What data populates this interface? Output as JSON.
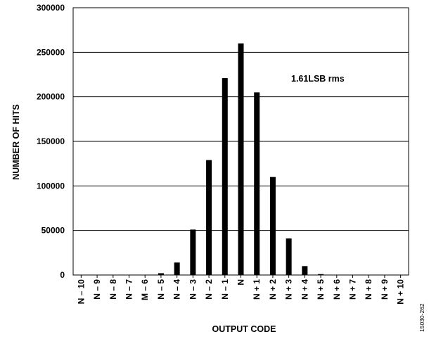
{
  "chart_data": {
    "type": "bar",
    "categories": [
      "N – 10",
      "N – 9",
      "N – 8",
      "N – 7",
      "M – 6",
      "N – 5",
      "N – 4",
      "N – 3",
      "N – 2",
      "N – 1",
      "N",
      "N + 1",
      "N + 2",
      "N + 3",
      "N + 4",
      "N + 5",
      "N + 6",
      "N + 7",
      "N + 8",
      "N + 9",
      "N + 10"
    ],
    "values": [
      0,
      0,
      0,
      0,
      0,
      2000,
      14000,
      51000,
      129000,
      221000,
      260000,
      205000,
      110000,
      41000,
      10000,
      1000,
      0,
      0,
      0,
      0,
      0
    ],
    "xlabel": "OUTPUT CODE",
    "ylabel": "NUMBER OF HITS",
    "ylim": [
      0,
      300000
    ],
    "yticks": [
      0,
      50000,
      100000,
      150000,
      200000,
      250000,
      300000
    ],
    "ytick_labels": [
      "0",
      "50000",
      "100000",
      "150000",
      "200000",
      "250000",
      "300000"
    ],
    "grid": true,
    "annotation": "1.61LSB rms",
    "bar_color": "#000000"
  },
  "figure_id": "15030-262"
}
